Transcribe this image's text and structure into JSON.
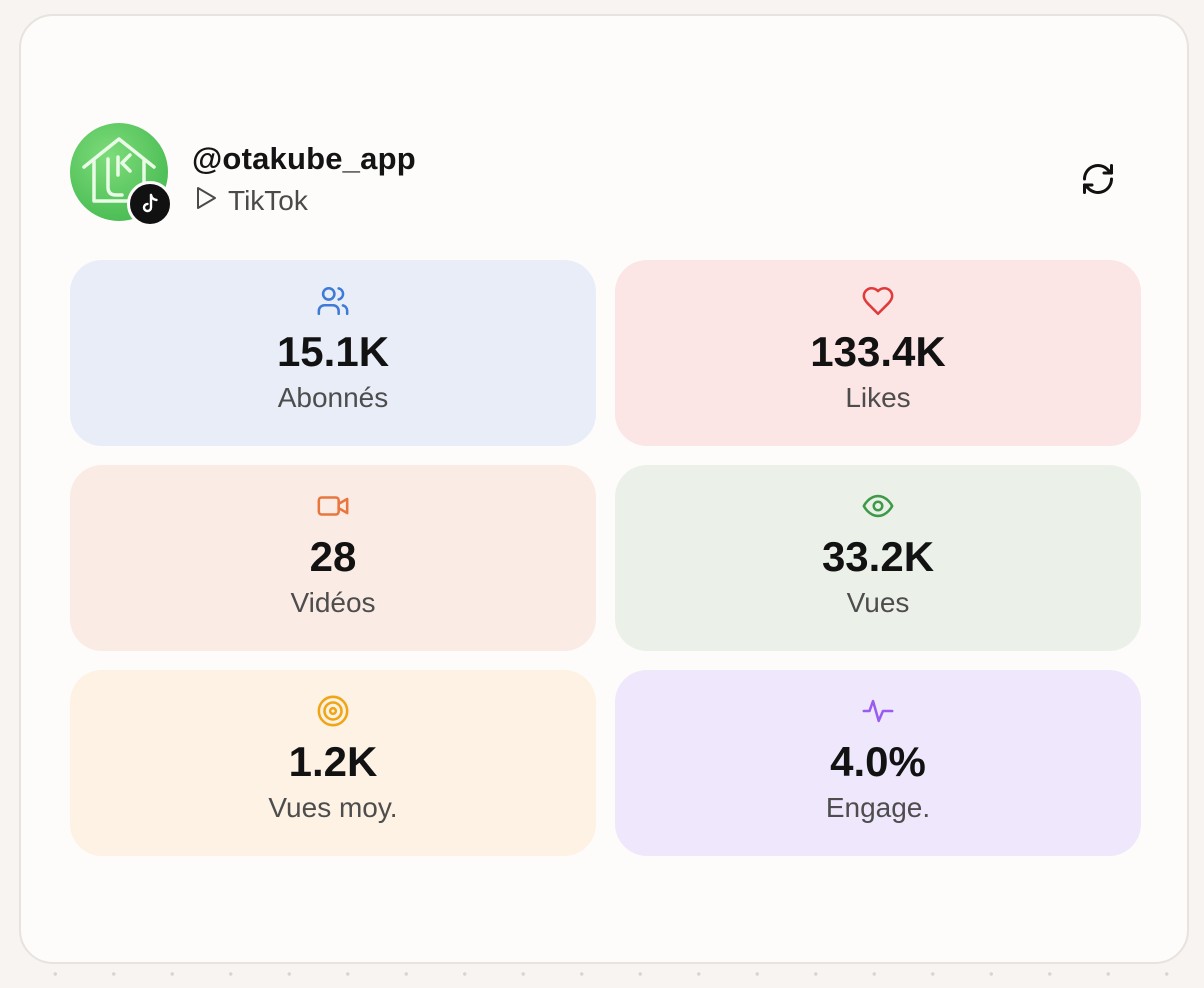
{
  "profile": {
    "handle": "@otakube_app",
    "platform": "TikTok",
    "avatar_icon": "otakube-logo",
    "badge_icon": "tiktok-icon"
  },
  "actions": {
    "refresh_icon": "refresh-icon"
  },
  "stats": [
    {
      "value": "15.1K",
      "label": "Abonnés",
      "icon": "users-icon",
      "bg": "#e8edf8",
      "color": "#3f7ad6"
    },
    {
      "value": "133.4K",
      "label": "Likes",
      "icon": "heart-icon",
      "bg": "#fbe5e5",
      "color": "#e03a3a"
    },
    {
      "value": "28",
      "label": "Vidéos",
      "icon": "video-icon",
      "bg": "#fbebe5",
      "color": "#e8763e"
    },
    {
      "value": "33.2K",
      "label": "Vues",
      "icon": "eye-icon",
      "bg": "#ebf1e9",
      "color": "#3f9a48"
    },
    {
      "value": "1.2K",
      "label": "Vues moy.",
      "icon": "target-icon",
      "bg": "#fdf2e3",
      "color": "#f0a514"
    },
    {
      "value": "4.0%",
      "label": "Engage.",
      "icon": "activity-icon",
      "bg": "#efe7fb",
      "color": "#9a5cf0"
    }
  ]
}
